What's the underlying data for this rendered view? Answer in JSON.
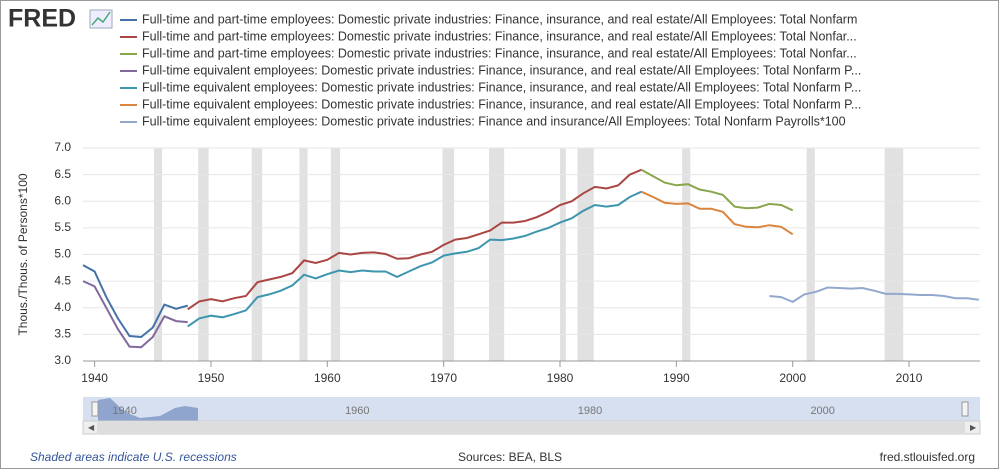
{
  "logo": "FRED",
  "chart_data": {
    "type": "line",
    "y_label": "Thous./Thous. of Persons*100",
    "ylim": [
      3,
      7
    ],
    "yticks": [
      {
        "value": 3,
        "label": "3.0"
      },
      {
        "value": 3.5,
        "label": "3.5"
      },
      {
        "value": 4,
        "label": "4.0"
      },
      {
        "value": 4.5,
        "label": "4.5"
      },
      {
        "value": 5,
        "label": "5.0"
      },
      {
        "value": 5.5,
        "label": "5.5"
      },
      {
        "value": 6,
        "label": "6.0"
      },
      {
        "value": 6.5,
        "label": "6.5"
      },
      {
        "value": 7,
        "label": "7.0"
      }
    ],
    "xlim": [
      1939,
      2016.1
    ],
    "xticks": [
      1940,
      1950,
      1960,
      1970,
      1980,
      1990,
      2000,
      2010
    ],
    "grid": true,
    "recessions": [
      [
        1945.1,
        1945.8
      ],
      [
        1948.9,
        1949.8
      ],
      [
        1953.5,
        1954.4
      ],
      [
        1957.6,
        1958.3
      ],
      [
        1960.3,
        1961.1
      ],
      [
        1969.9,
        1970.9
      ],
      [
        1973.9,
        1975.2
      ],
      [
        1980,
        1980.5
      ],
      [
        1981.5,
        1982.9
      ],
      [
        1990.5,
        1991.2
      ],
      [
        2001.2,
        2001.9
      ],
      [
        2007.9,
        2009.5
      ]
    ],
    "series": [
      {
        "name": "Full-time and part-time employees: Domestic private industries: Finance, insurance, and real estate/All Employees: Total Nonfarm",
        "color": "#4572a7",
        "x": [
          1939,
          1940,
          1941,
          1942,
          1943,
          1944,
          1945,
          1946,
          1947,
          1948
        ],
        "values": [
          4.8,
          4.68,
          4.2,
          3.8,
          3.47,
          3.45,
          3.63,
          4.06,
          3.98,
          4.04
        ]
      },
      {
        "name": "Full-time and part-time employees: Domestic private industries: Finance, insurance, and real estate/All Employees: Total Nonfar...",
        "color": "#aa4643",
        "x": [
          1948,
          1949,
          1950,
          1951,
          1952,
          1953,
          1954,
          1955,
          1956,
          1957,
          1958,
          1959,
          1960,
          1961,
          1962,
          1963,
          1964,
          1965,
          1966,
          1967,
          1968,
          1969,
          1970,
          1971,
          1972,
          1973,
          1974,
          1975,
          1976,
          1977,
          1978,
          1979,
          1980,
          1981,
          1982,
          1983,
          1984,
          1985,
          1986,
          1987
        ],
        "values": [
          3.97,
          4.12,
          4.16,
          4.12,
          4.18,
          4.22,
          4.48,
          4.53,
          4.58,
          4.65,
          4.89,
          4.84,
          4.9,
          5.03,
          5.0,
          5.03,
          5.04,
          5.01,
          4.92,
          4.93,
          5.0,
          5.05,
          5.18,
          5.28,
          5.31,
          5.38,
          5.45,
          5.6,
          5.6,
          5.63,
          5.7,
          5.8,
          5.93,
          6.0,
          6.15,
          6.27,
          6.24,
          6.3,
          6.5,
          6.59
        ]
      },
      {
        "name": "Full-time and part-time employees: Domestic private industries: Finance, insurance, and real estate/All Employees: Total Nonfar...",
        "color": "#89a54e",
        "x": [
          1987,
          1988,
          1989,
          1990,
          1991,
          1992,
          1993,
          1994,
          1995,
          1996,
          1997,
          1998,
          1999,
          2000
        ],
        "values": [
          6.59,
          6.47,
          6.35,
          6.3,
          6.32,
          6.22,
          6.18,
          6.12,
          5.9,
          5.87,
          5.88,
          5.95,
          5.93,
          5.83
        ]
      },
      {
        "name": "Full-time equivalent employees: Domestic private industries: Finance, insurance, and real estate/All Employees: Total Nonfarm P...",
        "color": "#80699b",
        "x": [
          1939,
          1940,
          1941,
          1942,
          1943,
          1944,
          1945,
          1946,
          1947,
          1948
        ],
        "values": [
          4.5,
          4.4,
          4.0,
          3.6,
          3.27,
          3.26,
          3.45,
          3.84,
          3.75,
          3.73
        ]
      },
      {
        "name": "Full-time equivalent employees: Domestic private industries: Finance, insurance, and real estate/All Employees: Total Nonfarm P...",
        "color": "#3d96ae",
        "x": [
          1948,
          1949,
          1950,
          1951,
          1952,
          1953,
          1954,
          1955,
          1956,
          1957,
          1958,
          1959,
          1960,
          1961,
          1962,
          1963,
          1964,
          1965,
          1966,
          1967,
          1968,
          1969,
          1970,
          1971,
          1972,
          1973,
          1974,
          1975,
          1976,
          1977,
          1978,
          1979,
          1980,
          1981,
          1982,
          1983,
          1984,
          1985,
          1986,
          1987
        ],
        "values": [
          3.65,
          3.8,
          3.85,
          3.82,
          3.88,
          3.95,
          4.2,
          4.25,
          4.32,
          4.42,
          4.62,
          4.55,
          4.63,
          4.7,
          4.67,
          4.7,
          4.68,
          4.68,
          4.58,
          4.68,
          4.78,
          4.85,
          4.98,
          5.02,
          5.05,
          5.12,
          5.28,
          5.27,
          5.3,
          5.35,
          5.43,
          5.5,
          5.6,
          5.68,
          5.82,
          5.93,
          5.9,
          5.93,
          6.08,
          6.18
        ]
      },
      {
        "name": "Full-time equivalent employees: Domestic private industries: Finance, insurance, and real estate/All Employees: Total Nonfarm P...",
        "color": "#db843d",
        "x": [
          1987,
          1988,
          1989,
          1990,
          1991,
          1992,
          1993,
          1994,
          1995,
          1996,
          1997,
          1998,
          1999,
          2000
        ],
        "values": [
          6.18,
          6.08,
          5.97,
          5.95,
          5.96,
          5.86,
          5.86,
          5.8,
          5.57,
          5.52,
          5.51,
          5.55,
          5.52,
          5.38
        ]
      },
      {
        "name": "Full-time equivalent employees: Domestic private industries: Finance and insurance/All Employees: Total Nonfarm Payrolls*100",
        "color": "#92a8cd",
        "x": [
          1998,
          1999,
          2000,
          2001,
          2002,
          2003,
          2004,
          2005,
          2006,
          2007,
          2008,
          2009,
          2010,
          2011,
          2012,
          2013,
          2014,
          2015,
          2016
        ],
        "values": [
          4.22,
          4.2,
          4.11,
          4.25,
          4.3,
          4.38,
          4.37,
          4.36,
          4.37,
          4.32,
          4.26,
          4.26,
          4.25,
          4.24,
          4.24,
          4.22,
          4.18,
          4.18,
          4.15
        ]
      }
    ],
    "navigator_labels": [
      "1940",
      "1960",
      "1980",
      "2000"
    ]
  },
  "footer": {
    "note": "Shaded areas indicate U.S. recessions",
    "sources": "Sources: BEA, BLS",
    "site": "fred.stlouisfed.org"
  }
}
